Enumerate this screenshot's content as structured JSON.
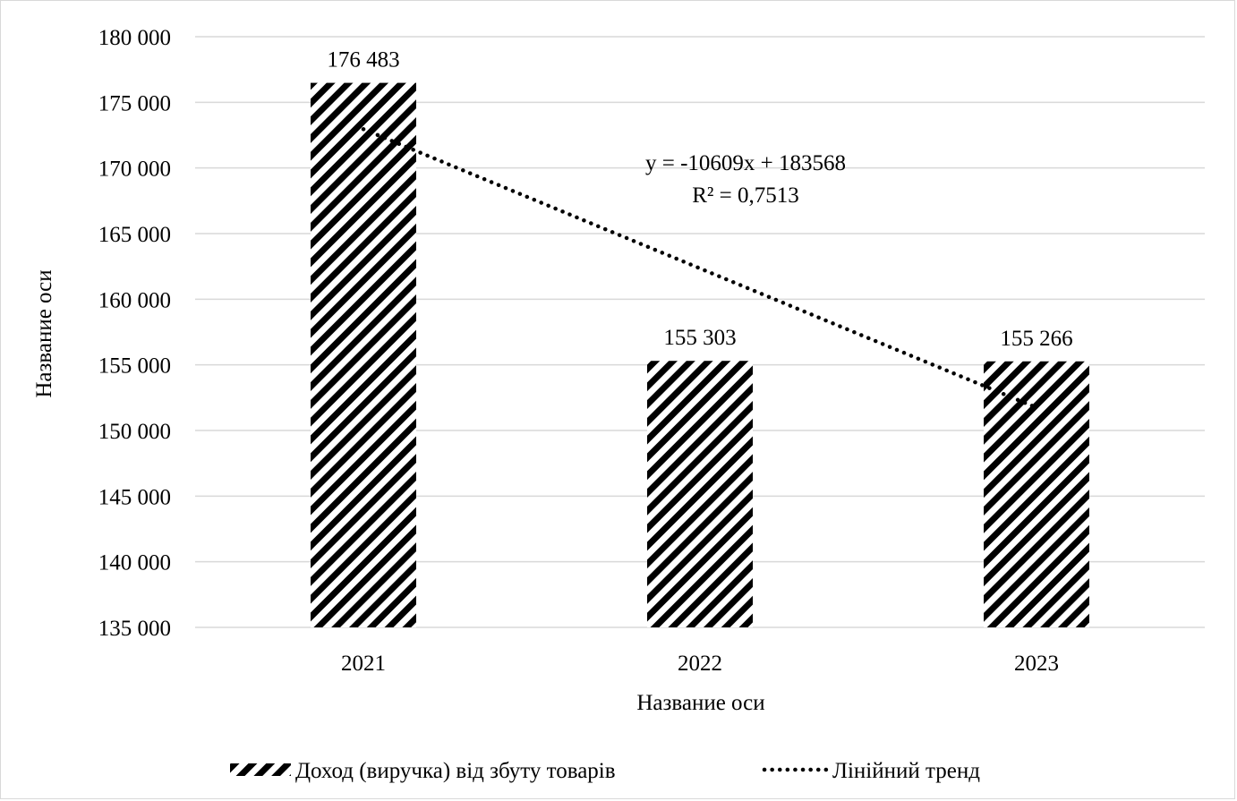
{
  "chart_data": {
    "type": "bar",
    "title": "",
    "xlabel": "Название оси",
    "ylabel": "Название оси",
    "categories": [
      "2021",
      "2022",
      "2023"
    ],
    "series": [
      {
        "name": "Доход (виручка) від збуту товарів",
        "values": [
          176483,
          155303,
          155266
        ],
        "data_labels": [
          "176 483",
          "155 303",
          "155 266"
        ],
        "pattern": "diagonal-stripes",
        "color": "#000000"
      }
    ],
    "trendline": {
      "name": "Лінійний тренд",
      "type": "linear",
      "style": "dotted",
      "slope": -10609,
      "intercept": 183568,
      "equation": "y = -10609x + 183568",
      "r_squared": "R² = 0,7513"
    },
    "ylim": [
      135000,
      180000
    ],
    "yticks": [
      135000,
      140000,
      145000,
      150000,
      155000,
      160000,
      165000,
      170000,
      175000,
      180000
    ],
    "ytick_labels": [
      "135 000",
      "140 000",
      "145 000",
      "150 000",
      "155 000",
      "160 000",
      "165 000",
      "170 000",
      "175 000",
      "180 000"
    ],
    "grid": true,
    "legend_position": "bottom"
  }
}
